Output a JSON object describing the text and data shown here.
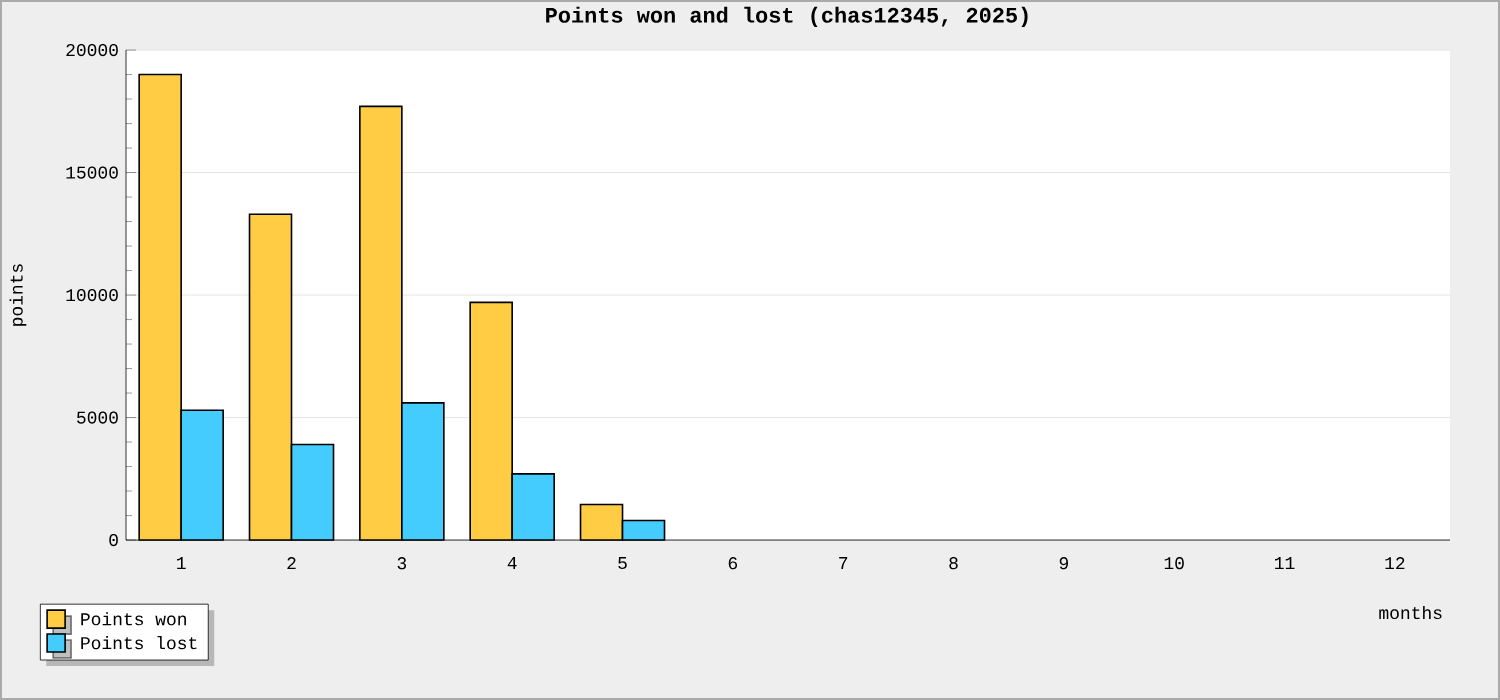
{
  "chart_data": {
    "type": "bar",
    "title": "Points won and lost (chas12345, 2025)",
    "xlabel": "months",
    "ylabel": "points",
    "categories": [
      "1",
      "2",
      "3",
      "4",
      "5",
      "6",
      "7",
      "8",
      "9",
      "10",
      "11",
      "12"
    ],
    "series": [
      {
        "name": "Points won",
        "color": "#ffcc44",
        "values": [
          19000,
          13300,
          17700,
          9700,
          1450,
          null,
          null,
          null,
          null,
          null,
          null,
          null
        ]
      },
      {
        "name": "Points lost",
        "color": "#44ccff",
        "values": [
          5300,
          3900,
          5600,
          2700,
          800,
          null,
          null,
          null,
          null,
          null,
          null,
          null
        ]
      }
    ],
    "ylim": [
      0,
      20000
    ],
    "yticks": [
      0,
      5000,
      10000,
      15000,
      20000
    ],
    "grid": "y",
    "legend": "bottom left"
  }
}
